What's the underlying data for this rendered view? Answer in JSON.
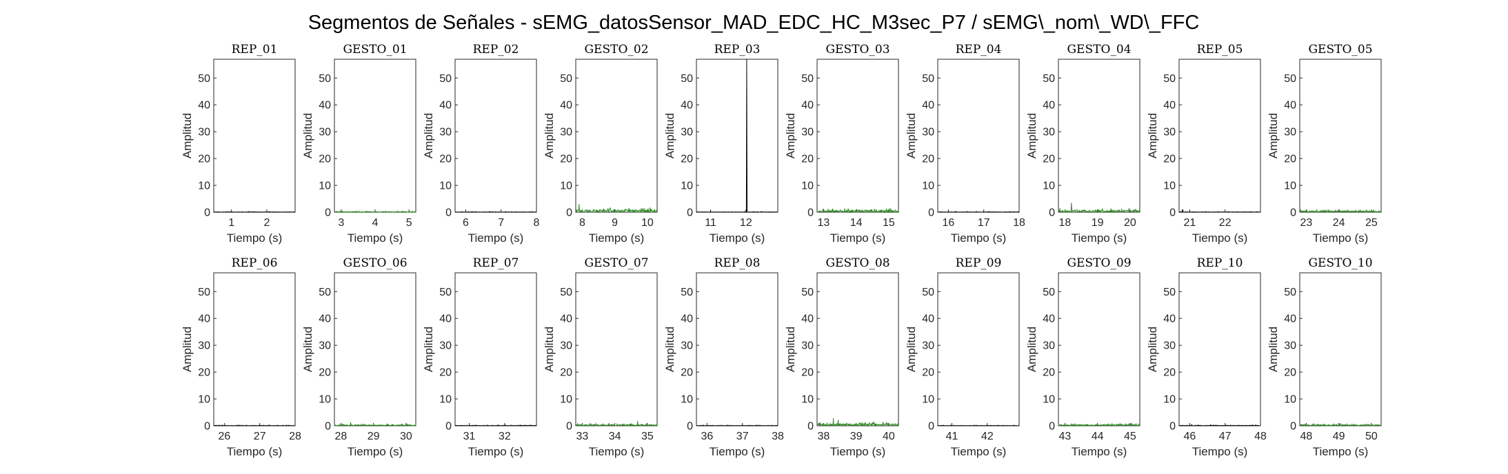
{
  "title": "Segmentos de Señales - sEMG_datosSensor_MAD_EDC_HC_M3sec_P7 / sEMG\\_nom\\_WD\\_FFC",
  "colors": {
    "rep": "#000000",
    "gesto": "#2e8b22",
    "axis": "#262626"
  },
  "chart_data": [
    {
      "type": "line",
      "title": "REP_01",
      "xlabel": "Tiempo (s)",
      "ylabel": "Amplitud",
      "xlim": [
        0.5,
        2.8
      ],
      "ylim": [
        0,
        57
      ],
      "xticks": [
        1,
        2
      ],
      "yticks": [
        0,
        10,
        20,
        30,
        40,
        50
      ],
      "series": [
        {
          "name": "REP_01",
          "color": "#000000",
          "noise": 0.25,
          "peaks": []
        }
      ]
    },
    {
      "type": "line",
      "title": "GESTO_01",
      "xlabel": "Tiempo (s)",
      "ylabel": "Amplitud",
      "xlim": [
        2.8,
        5.2
      ],
      "ylim": [
        0,
        57
      ],
      "xticks": [
        3,
        4,
        5
      ],
      "yticks": [
        0,
        10,
        20,
        30,
        40,
        50
      ],
      "series": [
        {
          "name": "GESTO_01",
          "color": "#2e8b22",
          "noise": 0.45,
          "peaks": []
        }
      ]
    },
    {
      "type": "line",
      "title": "REP_02",
      "xlabel": "Tiempo (s)",
      "ylabel": "Amplitud",
      "xlim": [
        5.7,
        8
      ],
      "ylim": [
        0,
        57
      ],
      "xticks": [
        6,
        7,
        8
      ],
      "yticks": [
        0,
        10,
        20,
        30,
        40,
        50
      ],
      "series": [
        {
          "name": "REP_02",
          "color": "#000000",
          "noise": 0.25,
          "peaks": []
        }
      ]
    },
    {
      "type": "line",
      "title": "GESTO_02",
      "xlabel": "Tiempo (s)",
      "ylabel": "Amplitud",
      "xlim": [
        7.8,
        10.3
      ],
      "ylim": [
        0,
        57
      ],
      "xticks": [
        8,
        9,
        10
      ],
      "yticks": [
        0,
        10,
        20,
        30,
        40,
        50
      ],
      "series": [
        {
          "name": "GESTO_02",
          "color": "#2e8b22",
          "noise": 1.8,
          "peaks": [
            [
              7.9,
              3
            ]
          ]
        }
      ]
    },
    {
      "type": "line",
      "title": "REP_03",
      "xlabel": "Tiempo (s)",
      "ylabel": "Amplitud",
      "xlim": [
        10.6,
        12.9
      ],
      "ylim": [
        0,
        57
      ],
      "xticks": [
        11,
        12
      ],
      "yticks": [
        0,
        10,
        20,
        30,
        40,
        50
      ],
      "series": [
        {
          "name": "REP_03",
          "color": "#000000",
          "noise": 0.25,
          "peaks": [
            [
              12.02,
              57
            ]
          ]
        }
      ]
    },
    {
      "type": "line",
      "title": "GESTO_03",
      "xlabel": "Tiempo (s)",
      "ylabel": "Amplitud",
      "xlim": [
        12.8,
        15.3
      ],
      "ylim": [
        0,
        57
      ],
      "xticks": [
        13,
        14,
        15
      ],
      "yticks": [
        0,
        10,
        20,
        30,
        40,
        50
      ],
      "series": [
        {
          "name": "GESTO_03",
          "color": "#2e8b22",
          "noise": 1.5,
          "peaks": []
        }
      ]
    },
    {
      "type": "line",
      "title": "REP_04",
      "xlabel": "Tiempo (s)",
      "ylabel": "Amplitud",
      "xlim": [
        15.7,
        18
      ],
      "ylim": [
        0,
        57
      ],
      "xticks": [
        16,
        17,
        18
      ],
      "yticks": [
        0,
        10,
        20,
        30,
        40,
        50
      ],
      "series": [
        {
          "name": "REP_04",
          "color": "#000000",
          "noise": 0.25,
          "peaks": []
        }
      ]
    },
    {
      "type": "line",
      "title": "GESTO_04",
      "xlabel": "Tiempo (s)",
      "ylabel": "Amplitud",
      "xlim": [
        17.8,
        20.3
      ],
      "ylim": [
        0,
        57
      ],
      "xticks": [
        18,
        19,
        20
      ],
      "yticks": [
        0,
        10,
        20,
        30,
        40,
        50
      ],
      "series": [
        {
          "name": "GESTO_04",
          "color": "#2e8b22",
          "noise": 1.5,
          "peaks": [
            [
              18.2,
              3.5
            ]
          ]
        }
      ]
    },
    {
      "type": "line",
      "title": "REP_05",
      "xlabel": "Tiempo (s)",
      "ylabel": "Amplitud",
      "xlim": [
        20.7,
        23
      ],
      "ylim": [
        0,
        57
      ],
      "xticks": [
        21,
        22
      ],
      "yticks": [
        0,
        10,
        20,
        30,
        40,
        50
      ],
      "series": [
        {
          "name": "REP_05",
          "color": "#000000",
          "noise": 0.25,
          "peaks": [
            [
              20.8,
              0.9
            ]
          ]
        }
      ]
    },
    {
      "type": "line",
      "title": "GESTO_05",
      "xlabel": "Tiempo (s)",
      "ylabel": "Amplitud",
      "xlim": [
        22.8,
        25.3
      ],
      "ylim": [
        0,
        57
      ],
      "xticks": [
        23,
        24,
        25
      ],
      "yticks": [
        0,
        10,
        20,
        30,
        40,
        50
      ],
      "series": [
        {
          "name": "GESTO_05",
          "color": "#2e8b22",
          "noise": 1.0,
          "peaks": []
        }
      ]
    },
    {
      "type": "line",
      "title": "REP_06",
      "xlabel": "Tiempo (s)",
      "ylabel": "Amplitud",
      "xlim": [
        25.7,
        28
      ],
      "ylim": [
        0,
        57
      ],
      "xticks": [
        26,
        27,
        28
      ],
      "yticks": [
        0,
        10,
        20,
        30,
        40,
        50
      ],
      "series": [
        {
          "name": "REP_06",
          "color": "#000000",
          "noise": 0.25,
          "peaks": []
        }
      ]
    },
    {
      "type": "line",
      "title": "GESTO_06",
      "xlabel": "Tiempo (s)",
      "ylabel": "Amplitud",
      "xlim": [
        27.8,
        30.3
      ],
      "ylim": [
        0,
        57
      ],
      "xticks": [
        28,
        29,
        30
      ],
      "yticks": [
        0,
        10,
        20,
        30,
        40,
        50
      ],
      "series": [
        {
          "name": "GESTO_06",
          "color": "#2e8b22",
          "noise": 0.7,
          "peaks": [
            [
              28.3,
              1.3
            ]
          ]
        }
      ]
    },
    {
      "type": "line",
      "title": "REP_07",
      "xlabel": "Tiempo (s)",
      "ylabel": "Amplitud",
      "xlim": [
        30.6,
        32.9
      ],
      "ylim": [
        0,
        57
      ],
      "xticks": [
        31,
        32
      ],
      "yticks": [
        0,
        10,
        20,
        30,
        40,
        50
      ],
      "series": [
        {
          "name": "REP_07",
          "color": "#000000",
          "noise": 0.3,
          "peaks": []
        }
      ]
    },
    {
      "type": "line",
      "title": "GESTO_07",
      "xlabel": "Tiempo (s)",
      "ylabel": "Amplitud",
      "xlim": [
        32.8,
        35.3
      ],
      "ylim": [
        0,
        57
      ],
      "xticks": [
        33,
        34,
        35
      ],
      "yticks": [
        0,
        10,
        20,
        30,
        40,
        50
      ],
      "series": [
        {
          "name": "GESTO_07",
          "color": "#2e8b22",
          "noise": 0.9,
          "peaks": [
            [
              34.7,
              1.8
            ]
          ]
        }
      ]
    },
    {
      "type": "line",
      "title": "REP_08",
      "xlabel": "Tiempo (s)",
      "ylabel": "Amplitud",
      "xlim": [
        35.7,
        38
      ],
      "ylim": [
        0,
        57
      ],
      "xticks": [
        36,
        37,
        38
      ],
      "yticks": [
        0,
        10,
        20,
        30,
        40,
        50
      ],
      "series": [
        {
          "name": "REP_08",
          "color": "#000000",
          "noise": 0.25,
          "peaks": []
        }
      ]
    },
    {
      "type": "line",
      "title": "GESTO_08",
      "xlabel": "Tiempo (s)",
      "ylabel": "Amplitud",
      "xlim": [
        37.8,
        40.3
      ],
      "ylim": [
        0,
        57
      ],
      "xticks": [
        38,
        39,
        40
      ],
      "yticks": [
        0,
        10,
        20,
        30,
        40,
        50
      ],
      "series": [
        {
          "name": "GESTO_08",
          "color": "#2e8b22",
          "noise": 1.5,
          "peaks": [
            [
              38.3,
              2.8
            ],
            [
              38.45,
              2.2
            ]
          ]
        }
      ]
    },
    {
      "type": "line",
      "title": "REP_09",
      "xlabel": "Tiempo (s)",
      "ylabel": "Amplitud",
      "xlim": [
        40.6,
        42.9
      ],
      "ylim": [
        0,
        57
      ],
      "xticks": [
        41,
        42
      ],
      "yticks": [
        0,
        10,
        20,
        30,
        40,
        50
      ],
      "series": [
        {
          "name": "REP_09",
          "color": "#000000",
          "noise": 0.25,
          "peaks": []
        }
      ]
    },
    {
      "type": "line",
      "title": "GESTO_09",
      "xlabel": "Tiempo (s)",
      "ylabel": "Amplitud",
      "xlim": [
        42.8,
        45.3
      ],
      "ylim": [
        0,
        57
      ],
      "xticks": [
        43,
        44,
        45
      ],
      "yticks": [
        0,
        10,
        20,
        30,
        40,
        50
      ],
      "series": [
        {
          "name": "GESTO_09",
          "color": "#2e8b22",
          "noise": 0.9,
          "peaks": []
        }
      ]
    },
    {
      "type": "line",
      "title": "REP_10",
      "xlabel": "Tiempo (s)",
      "ylabel": "Amplitud",
      "xlim": [
        45.7,
        48
      ],
      "ylim": [
        0,
        57
      ],
      "xticks": [
        46,
        47,
        48
      ],
      "yticks": [
        0,
        10,
        20,
        30,
        40,
        50
      ],
      "series": [
        {
          "name": "REP_10",
          "color": "#000000",
          "noise": 0.35,
          "peaks": []
        }
      ]
    },
    {
      "type": "line",
      "title": "GESTO_10",
      "xlabel": "Tiempo (s)",
      "ylabel": "Amplitud",
      "xlim": [
        47.8,
        50.3
      ],
      "ylim": [
        0,
        57
      ],
      "xticks": [
        48,
        49,
        50
      ],
      "yticks": [
        0,
        10,
        20,
        30,
        40,
        50
      ],
      "series": [
        {
          "name": "GESTO_10",
          "color": "#2e8b22",
          "noise": 0.9,
          "peaks": []
        }
      ]
    }
  ]
}
